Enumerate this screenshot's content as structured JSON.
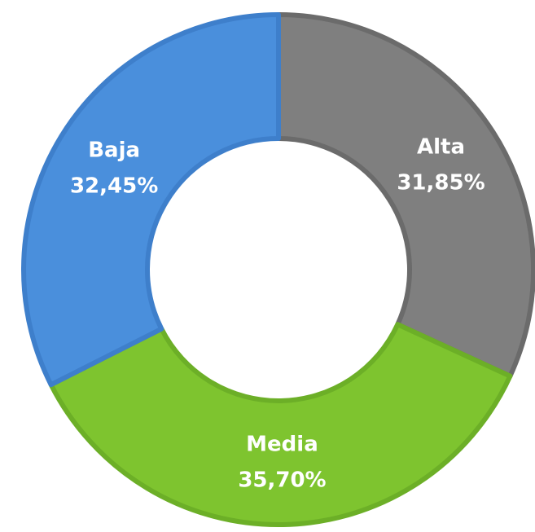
{
  "chart_data": {
    "type": "donut",
    "categories": [
      "Alta",
      "Media",
      "Baja"
    ],
    "values": [
      31.85,
      35.7,
      32.45
    ],
    "value_labels": [
      "31,85%",
      "35,70%",
      "32,45%"
    ],
    "colors": [
      "#7f7f7f",
      "#7ec42f",
      "#4a8fdc"
    ],
    "edge_colors": [
      "#6b6b6b",
      "#6caf27",
      "#3e7fcb"
    ]
  }
}
